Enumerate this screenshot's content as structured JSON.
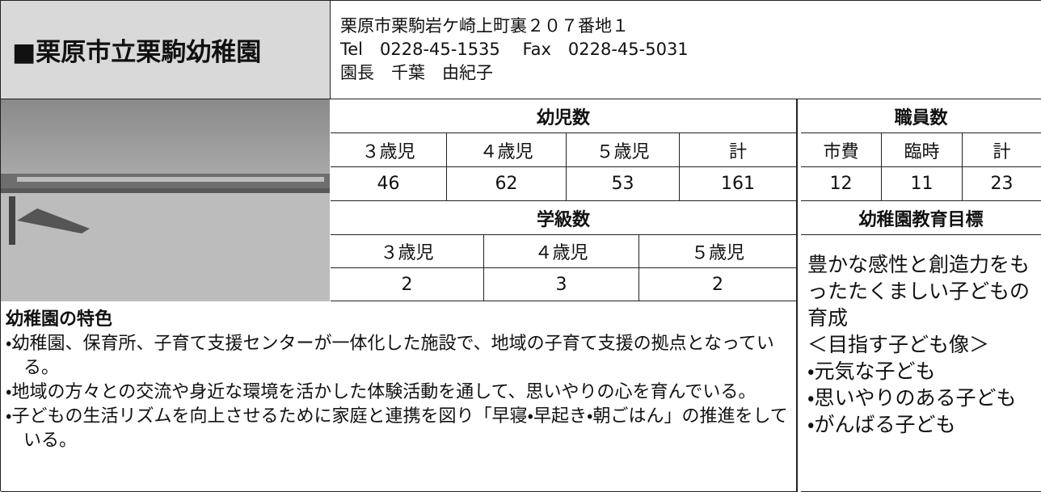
{
  "header": {
    "title": "■栗原市立栗駒幼稚園",
    "lines": [
      "栗原市栗駒岩ケ崎上町裏２０７番地１",
      "Tel　0228-45-1535　 Fax　0228-45-5031",
      "園長　千葉　由紀子"
    ]
  },
  "children": {
    "title": "幼児数",
    "columns": [
      "３歳児",
      "４歳児",
      "５歳児",
      "計"
    ],
    "values": [
      46,
      62,
      53,
      161
    ]
  },
  "staff": {
    "title": "職員数",
    "columns": [
      "市費",
      "臨時",
      "計"
    ],
    "values": [
      12,
      11,
      23
    ]
  },
  "classes": {
    "title": "学級数",
    "columns": [
      "３歳児",
      "４歳児",
      "５歳児"
    ],
    "values": [
      2,
      3,
      2
    ]
  },
  "goals": {
    "title": "幼稚園教育目標",
    "goal": "豊かな感性と創造力をもったたくましい子どもの育成",
    "ideal_title": "＜目指す子ども像＞",
    "ideals": [
      "・元気な子ども",
      "・思いやりのある子ども",
      "・がんばる子ども"
    ]
  },
  "features": {
    "title": "幼稚園の特色",
    "items": [
      "・幼稚園、保育所、子育て支援センターが一体化した施設で、地域の子育て支援の拠点となっている。",
      "・地域の方々との交流や身近な環境を活かした体験活動を通して、思いやりの心を育んでいる。",
      "・子どもの生活リズムを向上させるために家庭と連携を図り「早寝・早起き・朝ごはん」の推進をしている。"
    ]
  }
}
